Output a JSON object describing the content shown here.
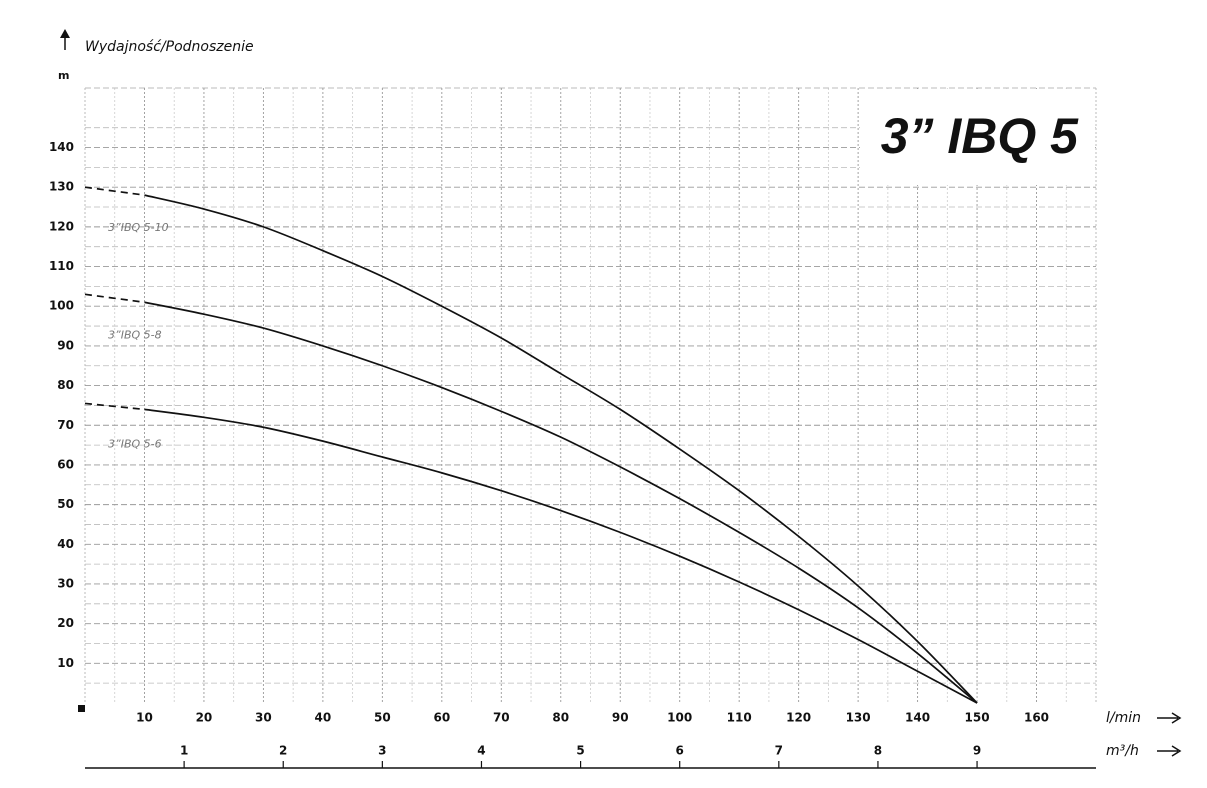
{
  "chart_data": {
    "type": "line",
    "title": "3” IBQ 5",
    "y_label": "Wydajność/Podnoszenie",
    "y_unit": "m",
    "x_label": "l/min",
    "x2_label": "m³/h",
    "x": [
      0,
      10,
      20,
      30,
      40,
      50,
      60,
      70,
      80,
      90,
      100,
      110,
      120,
      130,
      140,
      150
    ],
    "series": [
      {
        "name": "3”IBQ 5-10",
        "color": "#111111",
        "values": [
          130,
          128,
          124.5,
          120,
          114,
          107.5,
          100,
          92,
          83,
          74,
          64,
          53.5,
          42,
          29.5,
          15.5,
          0
        ]
      },
      {
        "name": "3”IBQ 5-8",
        "color": "#111111",
        "values": [
          103,
          101,
          98,
          94.5,
          90,
          85,
          79.5,
          73.5,
          67,
          59.5,
          51.5,
          43,
          34,
          24,
          12.5,
          0
        ]
      },
      {
        "name": "3”IBQ 5-6",
        "color": "#111111",
        "values": [
          75.5,
          74,
          72,
          69.5,
          66,
          62,
          58,
          53.5,
          48.5,
          43,
          37,
          30.5,
          23.5,
          16,
          8,
          0
        ]
      }
    ],
    "xlim": [
      0,
      170
    ],
    "xticks": [
      10,
      20,
      30,
      40,
      50,
      60,
      70,
      80,
      90,
      100,
      110,
      120,
      130,
      140,
      150,
      160
    ],
    "x2lim": [
      0,
      10.2
    ],
    "x2ticks": [
      1,
      2,
      3,
      4,
      5,
      6,
      7,
      8,
      9
    ],
    "ylim": [
      0,
      155
    ],
    "yticks": [
      10,
      20,
      30,
      40,
      50,
      60,
      70,
      80,
      90,
      100,
      110,
      120,
      130,
      140
    ],
    "grid": true
  }
}
